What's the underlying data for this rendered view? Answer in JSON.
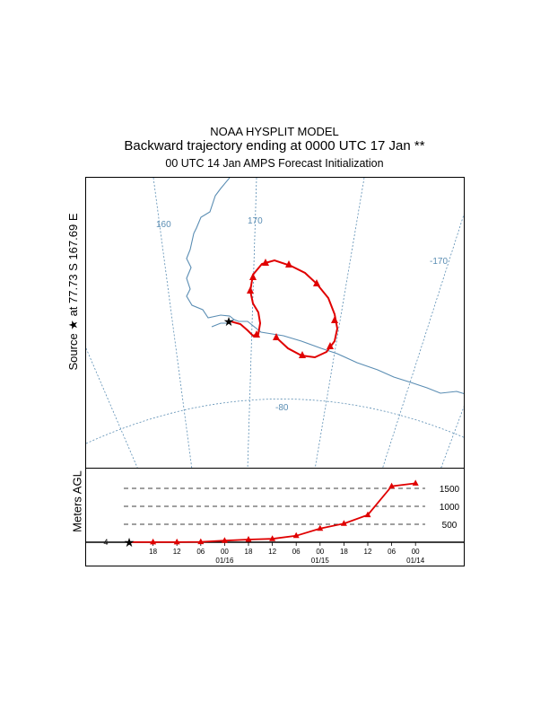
{
  "title": {
    "line1": "NOAA HYSPLIT MODEL",
    "line2": "Backward trajectory ending at 0000 UTC 17 Jan **",
    "line3": "00 UTC 14 Jan    AMPS  Forecast Initialization"
  },
  "source_label": "Source ★ at  77.73 S  167.69 E",
  "height_ylabel": "Meters AGL",
  "colors": {
    "trajectory": "#e00000",
    "grid": "#5a8db3",
    "coast": "#5a8db3"
  },
  "map": {
    "longitude_labels": [
      "160",
      "170",
      "-170"
    ],
    "latitude_label": "-80"
  },
  "chart_data": {
    "type": "line",
    "series": [
      {
        "values": [
          {
            "time": "01/17 00",
            "agl_m": 4
          },
          {
            "time": "01/16 18",
            "agl_m": 4
          },
          {
            "time": "01/16 12",
            "agl_m": 4
          },
          {
            "time": "01/16 06",
            "agl_m": 10
          },
          {
            "time": "01/16 00",
            "agl_m": 45
          },
          {
            "time": "01/15 18",
            "agl_m": 75
          },
          {
            "time": "01/15 12",
            "agl_m": 95
          },
          {
            "time": "01/15 06",
            "agl_m": 180
          },
          {
            "time": "01/15 00",
            "agl_m": 380
          },
          {
            "time": "01/14 18",
            "agl_m": 520
          },
          {
            "time": "01/14 12",
            "agl_m": 760
          },
          {
            "time": "01/14 06",
            "agl_m": 1560
          },
          {
            "time": "01/14 00",
            "agl_m": 1640
          }
        ]
      }
    ],
    "x_tick_labels": [
      "18",
      "12",
      "06",
      "00",
      "18",
      "12",
      "06",
      "00",
      "18",
      "12",
      "06",
      "00"
    ],
    "x_date_labels": [
      "01/16",
      "01/15",
      "01/14"
    ],
    "y_ticks": [
      500,
      1000,
      1500
    ],
    "y_tick_labels": [
      "500",
      "1000",
      "1500"
    ],
    "source_height_label": "4",
    "ylim": [
      0,
      1750
    ],
    "grid": "dashed horizontal reference lines"
  }
}
